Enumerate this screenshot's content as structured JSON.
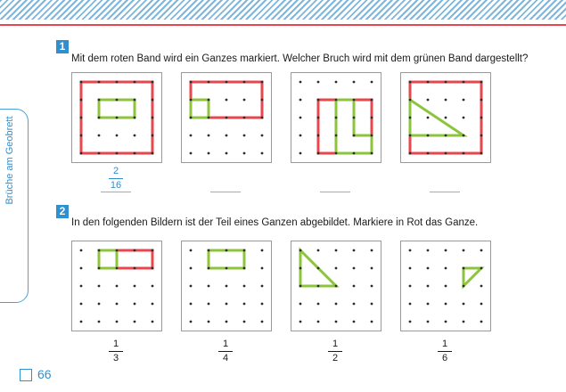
{
  "side_label": "Brüche am Geobrett",
  "page_number": "66",
  "colors": {
    "accent": "#2f8fcf",
    "red_band": "#e8474d",
    "green_band": "#8cc43c",
    "peg": "#2b2b2b"
  },
  "tasks": [
    {
      "number": "1",
      "text": "Mit dem roten Band wird ein Ganzes markiert. Welcher Bruch wird mit dem grünen Band dargestellt?",
      "answer": {
        "numerator": "2",
        "denominator": "16"
      }
    },
    {
      "number": "2",
      "text": "In den folgenden Bildern ist der Teil eines Ganzen abgebildet. Markiere in Rot das Ganze.",
      "fractions": [
        {
          "numerator": "1",
          "denominator": "3"
        },
        {
          "numerator": "1",
          "denominator": "4"
        },
        {
          "numerator": "1",
          "denominator": "2"
        },
        {
          "numerator": "1",
          "denominator": "6"
        }
      ]
    }
  ]
}
